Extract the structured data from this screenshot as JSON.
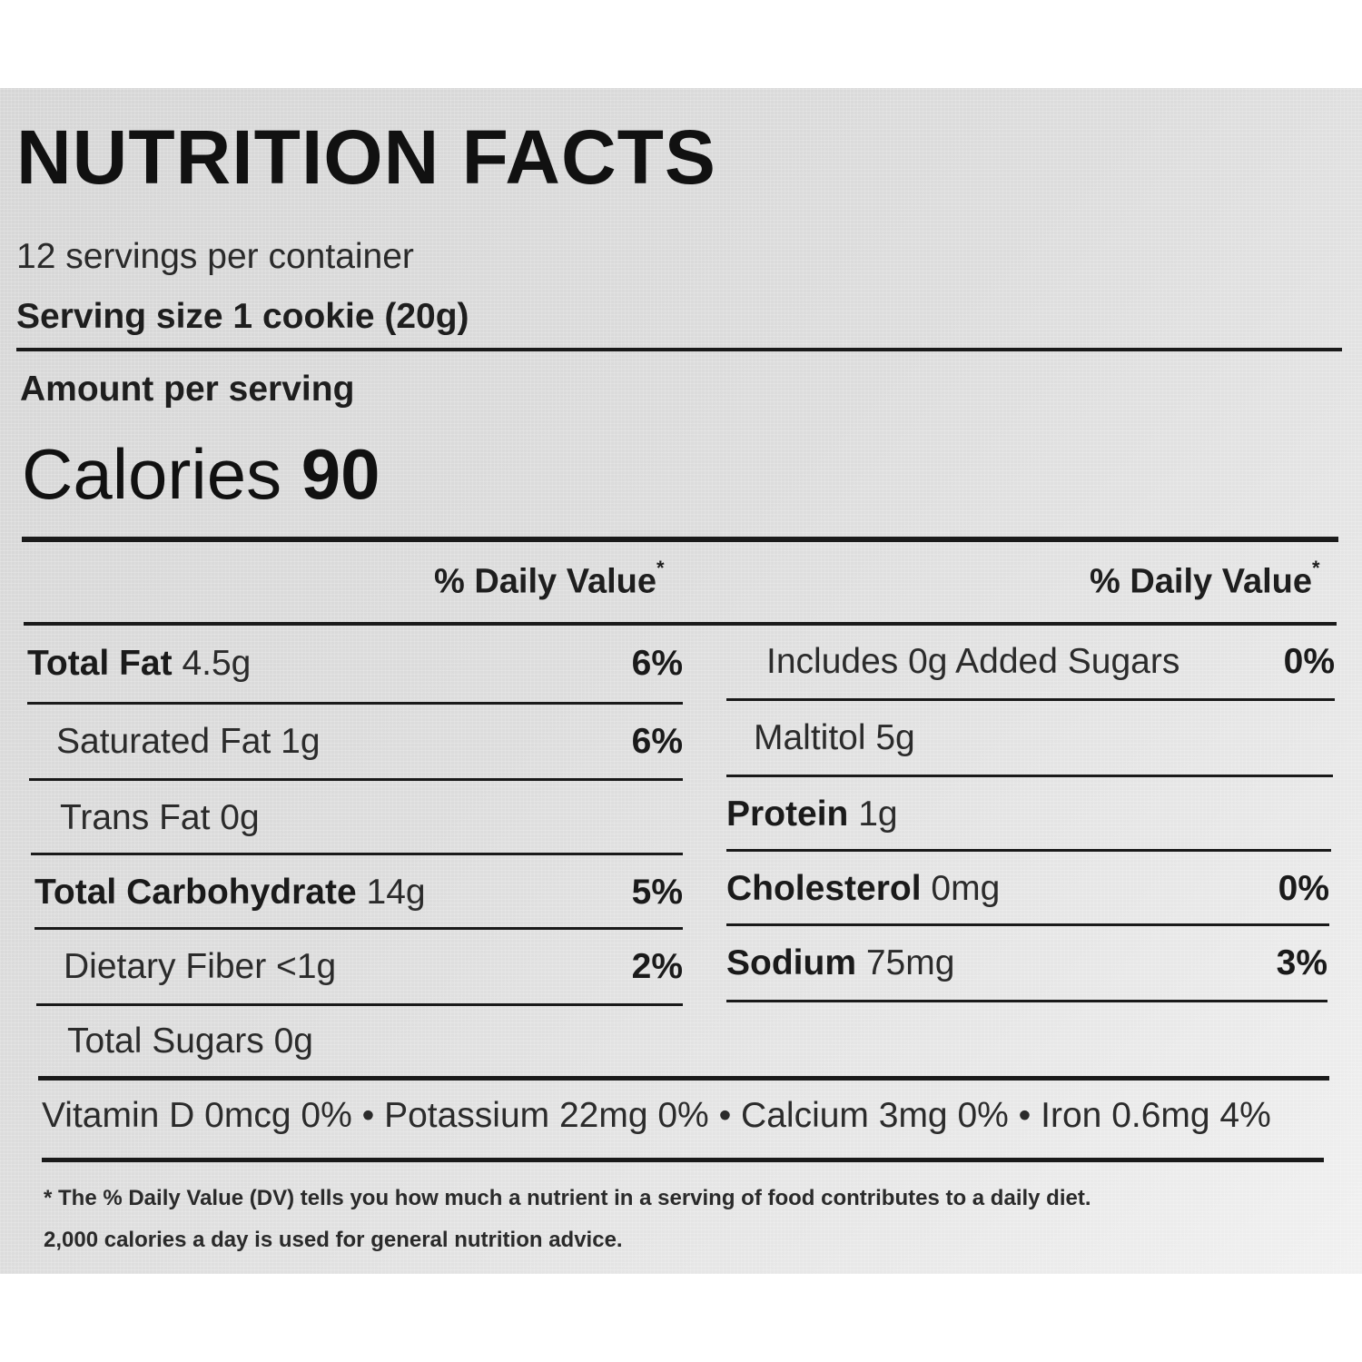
{
  "title": "NUTRITION FACTS",
  "servings_per_container": "12 servings per container",
  "serving_size": "Serving size 1 cookie (20g)",
  "amount_per_serving": "Amount per serving",
  "calories": {
    "label": "Calories",
    "value": "90"
  },
  "dv_header": "% Daily Value",
  "dv_asterisk": "*",
  "left_rows": [
    {
      "name": "Total Fat",
      "amount": "4.5g",
      "dv": "6%"
    },
    {
      "name": "Saturated Fat 1g",
      "dv": "6%"
    },
    {
      "name": "Trans Fat 0g",
      "dv": ""
    },
    {
      "name": "Total Carbohydrate",
      "amount": "14g",
      "dv": "5%"
    },
    {
      "name": "Dietary Fiber <1g",
      "dv": "2%"
    },
    {
      "name": "Total Sugars 0g",
      "dv": ""
    }
  ],
  "right_rows": [
    {
      "name": "Includes 0g Added Sugars",
      "dv": "0%"
    },
    {
      "name": "Maltitol 5g",
      "dv": ""
    },
    {
      "name": "Protein",
      "amount": "1g",
      "dv": ""
    },
    {
      "name": "Cholesterol",
      "amount": "0mg",
      "dv": "0%"
    },
    {
      "name": "Sodium",
      "amount": "75mg",
      "dv": "3%"
    }
  ],
  "vitamins": "Vitamin D 0mcg 0% • Potassium 22mg 0% • Calcium 3mg 0% • Iron 0.6mg 4%",
  "footnote_line1": "* The % Daily Value (DV) tells you how much a nutrient in a serving of food contributes to a daily diet.",
  "footnote_line2": "2,000 calories a day is used for general nutrition advice."
}
